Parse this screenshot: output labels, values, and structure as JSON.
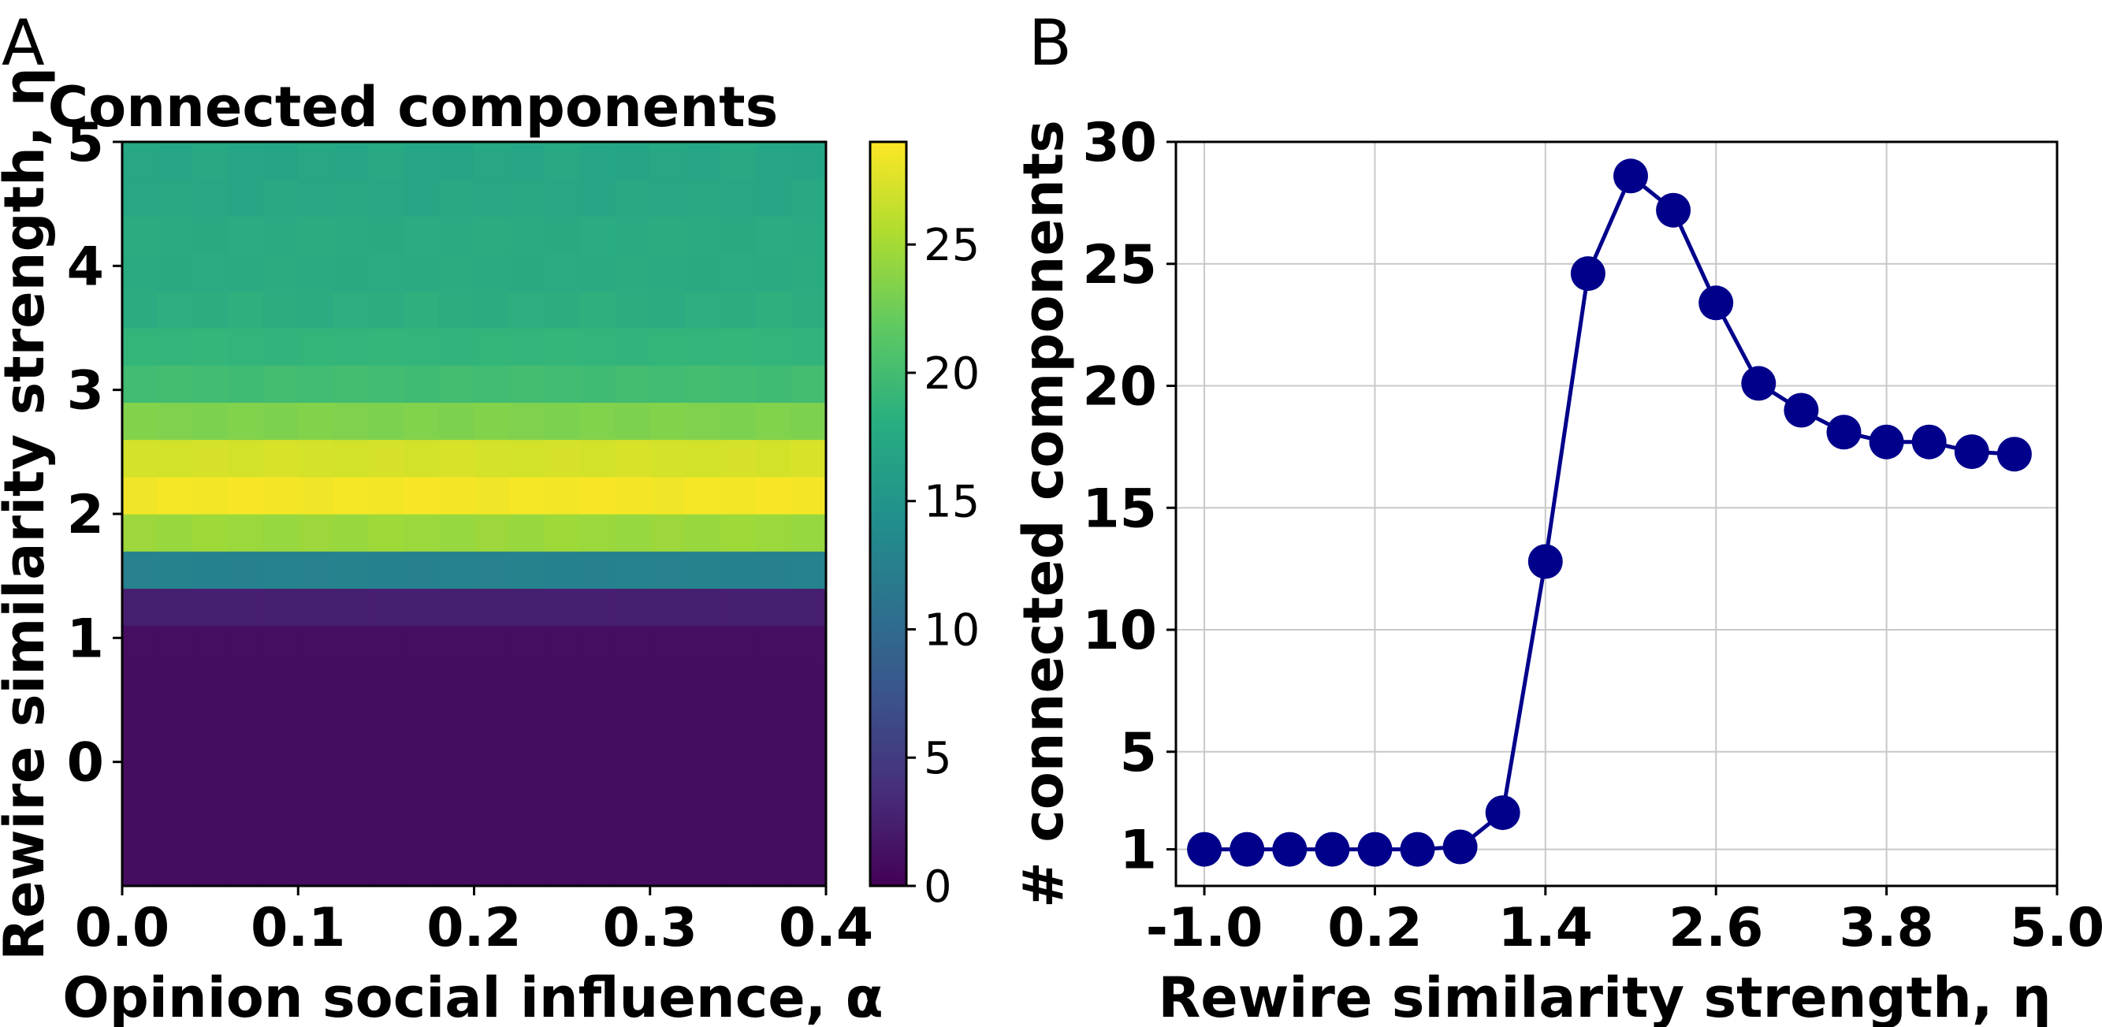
{
  "panels": {
    "a": {
      "letter": "A"
    },
    "b": {
      "letter": "B"
    }
  },
  "chart_data": [
    {
      "type": "heatmap",
      "title": "Connected components",
      "xlabel": "Opinion social influence, α",
      "ylabel": "Rewire similarity strength, η",
      "xlim": [
        0.0,
        0.4
      ],
      "ylim": [
        -1.0,
        5.0
      ],
      "x_ticks": [
        "0.0",
        "0.1",
        "0.2",
        "0.3",
        "0.4"
      ],
      "y_ticks": [
        "0",
        "1",
        "2",
        "3",
        "4",
        "5"
      ],
      "colormap": "viridis",
      "colorbar": {
        "min": 0,
        "max": 29,
        "ticks": [
          "0",
          "5",
          "10",
          "15",
          "20",
          "25"
        ]
      },
      "columns": 20,
      "rows": [
        {
          "eta": -1.0,
          "value": 1.0
        },
        {
          "eta": -0.7,
          "value": 1.0
        },
        {
          "eta": -0.4,
          "value": 1.0
        },
        {
          "eta": -0.1,
          "value": 1.0
        },
        {
          "eta": 0.2,
          "value": 1.0
        },
        {
          "eta": 0.5,
          "value": 1.0
        },
        {
          "eta": 0.8,
          "value": 1.1
        },
        {
          "eta": 1.1,
          "value": 2.5
        },
        {
          "eta": 1.4,
          "value": 12.8
        },
        {
          "eta": 1.7,
          "value": 24.6
        },
        {
          "eta": 2.0,
          "value": 28.6
        },
        {
          "eta": 2.3,
          "value": 27.2
        },
        {
          "eta": 2.6,
          "value": 23.4
        },
        {
          "eta": 2.9,
          "value": 20.1
        },
        {
          "eta": 3.2,
          "value": 19.0
        },
        {
          "eta": 3.5,
          "value": 18.1
        },
        {
          "eta": 3.8,
          "value": 17.7
        },
        {
          "eta": 4.1,
          "value": 17.7
        },
        {
          "eta": 4.4,
          "value": 17.3
        },
        {
          "eta": 4.7,
          "value": 17.2
        }
      ]
    },
    {
      "type": "line",
      "title": "",
      "xlabel": "Rewire similarity strength, η",
      "ylabel": "# connected components",
      "xlim": [
        -1.2,
        5.0
      ],
      "ylim": [
        -0.5,
        30.0
      ],
      "x_ticks": [
        "-1.0",
        "0.2",
        "1.4",
        "2.6",
        "3.8",
        "5.0"
      ],
      "y_ticks": [
        "1",
        "5",
        "10",
        "15",
        "20",
        "25",
        "30"
      ],
      "grid": true,
      "color": "#00008b",
      "x": [
        -1.0,
        -0.7,
        -0.4,
        -0.1,
        0.2,
        0.5,
        0.8,
        1.1,
        1.4,
        1.7,
        2.0,
        2.3,
        2.6,
        2.9,
        3.2,
        3.5,
        3.8,
        4.1,
        4.4,
        4.7
      ],
      "y": [
        1.0,
        1.0,
        1.0,
        1.0,
        1.0,
        1.0,
        1.1,
        2.5,
        12.8,
        24.6,
        28.6,
        27.2,
        23.4,
        20.1,
        19.0,
        18.1,
        17.7,
        17.7,
        17.3,
        17.2
      ]
    }
  ]
}
